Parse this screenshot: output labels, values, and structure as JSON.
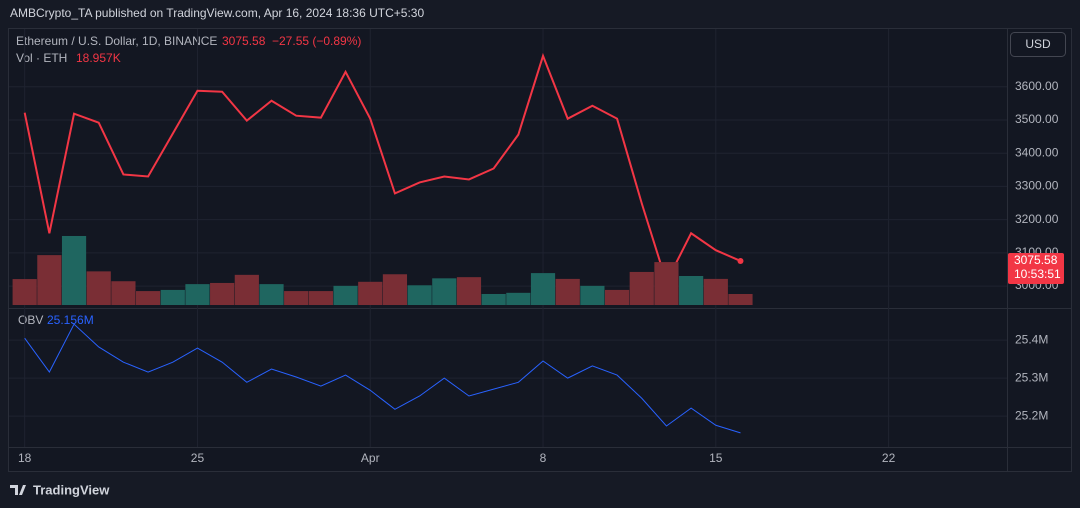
{
  "header": {
    "attribution": "AMBCrypto_TA published on TradingView.com, Apr 16, 2024 18:36 UTC+5:30",
    "change": "−27.55 (−0.89%)",
    "currency": "USD",
    "countdown": "10:53:51",
    "footer": "TradingView"
  },
  "chart_data": [
    {
      "type": "line",
      "x": [
        "Mar 18",
        "Mar 19",
        "Mar 20",
        "Mar 21",
        "Mar 22",
        "Mar 23",
        "Mar 24",
        "Mar 25",
        "Mar 26",
        "Mar 27",
        "Mar 28",
        "Mar 29",
        "Mar 30",
        "Mar 31",
        "Apr 1",
        "Apr 2",
        "Apr 3",
        "Apr 4",
        "Apr 5",
        "Apr 6",
        "Apr 7",
        "Apr 8",
        "Apr 9",
        "Apr 10",
        "Apr 11",
        "Apr 12",
        "Apr 13",
        "Apr 14",
        "Apr 15",
        "Apr 16"
      ],
      "xlim": [
        "Mar 17",
        "Apr 27"
      ],
      "xticks": [
        {
          "value": "Mar 18",
          "label": "18"
        },
        {
          "value": "Mar 25",
          "label": "25"
        },
        {
          "value": "Apr 1",
          "label": "Apr"
        },
        {
          "value": "Apr 8",
          "label": "8"
        },
        {
          "value": "Apr 15",
          "label": "15"
        },
        {
          "value": "Apr 22",
          "label": "22"
        }
      ],
      "ylim": [
        2943,
        3774
      ],
      "yticks": [
        {
          "value": 3000,
          "label": "3000.00"
        },
        {
          "value": 3100,
          "label": "3100.00"
        },
        {
          "value": 3200,
          "label": "3200.00"
        },
        {
          "value": 3300,
          "label": "3300.00"
        },
        {
          "value": 3400,
          "label": "3400.00"
        },
        {
          "value": 3500,
          "label": "3500.00"
        },
        {
          "value": 3600,
          "label": "3600.00"
        }
      ],
      "grid": true,
      "series": [
        {
          "name": "Ethereum / U.S. Dollar, 1D, BINANCE",
          "color": "#f23645",
          "values": [
            3522,
            3159,
            3519,
            3492,
            3336,
            3330,
            3459,
            3588,
            3585,
            3498,
            3558,
            3513,
            3507,
            3645,
            3504,
            3279,
            3312,
            3330,
            3321,
            3354,
            3456,
            3693,
            3504,
            3543,
            3504,
            3249,
            3012,
            3159,
            3108,
            3075.58
          ]
        }
      ]
    },
    {
      "type": "bar",
      "series": [
        {
          "name": "Vol · ETH",
          "values": [
            44.7,
            86,
            119,
            58,
            41,
            24,
            26,
            36,
            38,
            52,
            36,
            24,
            24,
            33,
            40,
            53,
            34,
            46,
            48,
            19,
            21,
            55,
            45,
            33,
            26,
            57,
            74,
            50,
            45,
            18.957
          ],
          "colors": [
            "#7a2e35",
            "#7a2e35",
            "#1f6660",
            "#7a2e35",
            "#7a2e35",
            "#7a2e35",
            "#1f6660",
            "#1f6660",
            "#7a2e35",
            "#7a2e35",
            "#1f6660",
            "#7a2e35",
            "#7a2e35",
            "#1f6660",
            "#7a2e35",
            "#7a2e35",
            "#1f6660",
            "#1f6660",
            "#7a2e35",
            "#1f6660",
            "#1f6660",
            "#1f6660",
            "#7a2e35",
            "#1f6660",
            "#7a2e35",
            "#7a2e35",
            "#7a2e35",
            "#1f6660",
            "#7a2e35",
            "#7a2e35"
          ],
          "last_value_label": "18.957K"
        }
      ]
    },
    {
      "type": "line",
      "ylim": [
        25.124,
        25.474
      ],
      "yticks": [
        {
          "value": 25.2,
          "label": "25.2M"
        },
        {
          "value": 25.3,
          "label": "25.3M"
        },
        {
          "value": 25.4,
          "label": "25.4M"
        }
      ],
      "grid": true,
      "series": [
        {
          "name": "OBV",
          "color": "#2962ff",
          "values": [
            25.405,
            25.316,
            25.442,
            25.382,
            25.342,
            25.316,
            25.342,
            25.379,
            25.342,
            25.289,
            25.324,
            25.303,
            25.279,
            25.308,
            25.268,
            25.218,
            25.253,
            25.3,
            25.253,
            25.271,
            25.289,
            25.345,
            25.3,
            25.332,
            25.308,
            25.247,
            25.174,
            25.221,
            25.176,
            25.156
          ],
          "last_value_label": "25.156M"
        }
      ]
    }
  ]
}
